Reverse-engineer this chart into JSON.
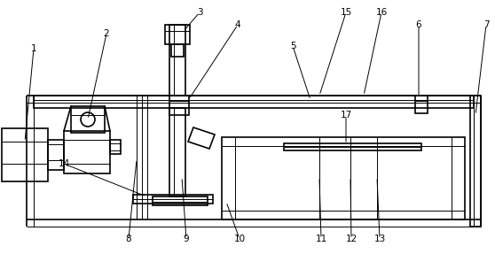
{
  "bg_color": "#ffffff",
  "lc": "#000000",
  "lw": 1.2,
  "tlw": 0.7,
  "fig_w": 5.58,
  "fig_h": 2.87,
  "label_fs": 7.5
}
